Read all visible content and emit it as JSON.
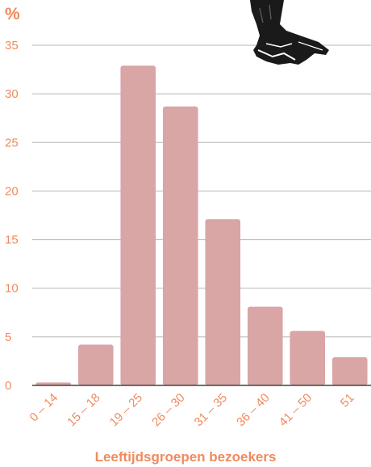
{
  "chart_data": {
    "type": "bar",
    "unit_label": "%",
    "categories": [
      "0 – 14",
      "15 – 18",
      "19 – 25",
      "26 – 30",
      "31 – 35",
      "36 – 40",
      "41 – 50",
      "51"
    ],
    "values": [
      0.3,
      4.2,
      32.9,
      28.7,
      17.1,
      8.1,
      5.6,
      2.9
    ],
    "xlabel": "Leeftijdsgroepen bezoekers",
    "ylabel": "",
    "ylim": [
      0,
      35
    ],
    "yticks": [
      0,
      5,
      10,
      15,
      20,
      25,
      30,
      35
    ],
    "grid": true,
    "colors": {
      "bar": "#d9a5a5",
      "text": "#f08a5d",
      "grid": "#b8b8b8",
      "axis": "#444444"
    },
    "illustration": "hand-sketch-icon"
  }
}
